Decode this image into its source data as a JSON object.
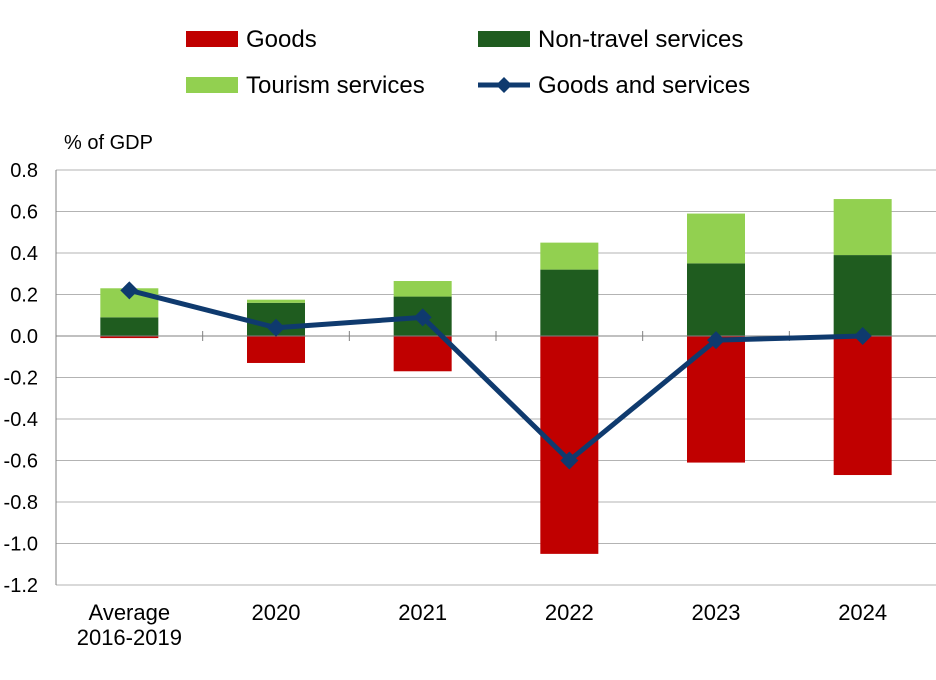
{
  "chart_data": {
    "type": "bar",
    "stacked": true,
    "unit_label": "% of GDP",
    "categories": [
      [
        "Average",
        "2016-2019"
      ],
      [
        "2020"
      ],
      [
        "2021"
      ],
      [
        "2022"
      ],
      [
        "2023"
      ],
      [
        "2024"
      ]
    ],
    "ylim": [
      -1.2,
      0.8
    ],
    "yticks": [
      "0.8",
      "0.6",
      "0.4",
      "0.2",
      "0.0",
      "-0.2",
      "-0.4",
      "-0.6",
      "-0.8",
      "-1.0",
      "-1.2"
    ],
    "ytick_values": [
      0.8,
      0.6,
      0.4,
      0.2,
      0.0,
      -0.2,
      -0.4,
      -0.6,
      -0.8,
      -1.0,
      -1.2
    ],
    "grid": true,
    "legend_position": "top",
    "series": [
      {
        "name": "Goods",
        "type": "bar",
        "color": "#c00000",
        "values": [
          -0.01,
          -0.13,
          -0.17,
          -1.05,
          -0.61,
          -0.67
        ]
      },
      {
        "name": "Non-travel services",
        "type": "bar",
        "color": "#1f5c1f",
        "values": [
          0.09,
          0.16,
          0.19,
          0.32,
          0.35,
          0.39
        ]
      },
      {
        "name": "Tourism services",
        "type": "bar",
        "color": "#92d050",
        "values": [
          0.14,
          0.015,
          0.075,
          0.13,
          0.24,
          0.27
        ]
      },
      {
        "name": "Goods and services",
        "type": "line",
        "color": "#0f3a6e",
        "marker": "diamond",
        "values": [
          0.22,
          0.04,
          0.09,
          -0.6,
          -0.02,
          0.0
        ]
      }
    ]
  }
}
